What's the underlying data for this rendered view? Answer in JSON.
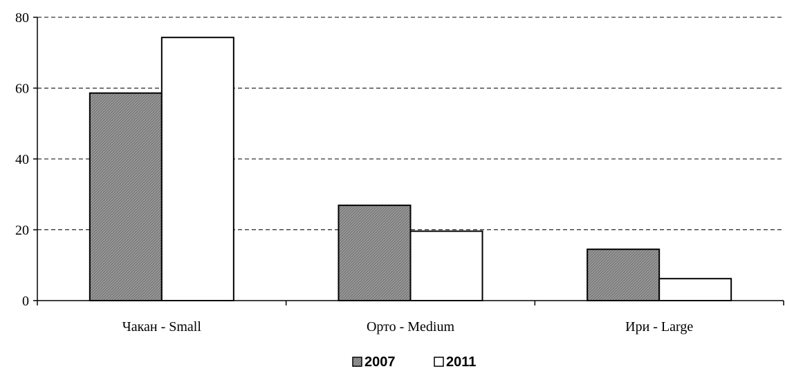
{
  "chart_data": {
    "type": "bar",
    "title": "",
    "xlabel": "",
    "ylabel": "",
    "categories": [
      "Чакан - Small",
      "Орто - Medium",
      "Ири - Large"
    ],
    "series": [
      {
        "name": "2007",
        "values": [
          58.6,
          26.9,
          14.5
        ],
        "fill": "hatched-gray"
      },
      {
        "name": "2011",
        "values": [
          74.3,
          19.6,
          6.2
        ],
        "fill": "white"
      }
    ],
    "ylim": [
      0,
      80
    ],
    "yticks": [
      0,
      20,
      40,
      60,
      80
    ],
    "grid": "dashed-horizontal",
    "legend_position": "bottom"
  },
  "colors": {
    "bar_2007": "#9a9a9a",
    "bar_2011": "#ffffff",
    "stroke": "#000000"
  }
}
